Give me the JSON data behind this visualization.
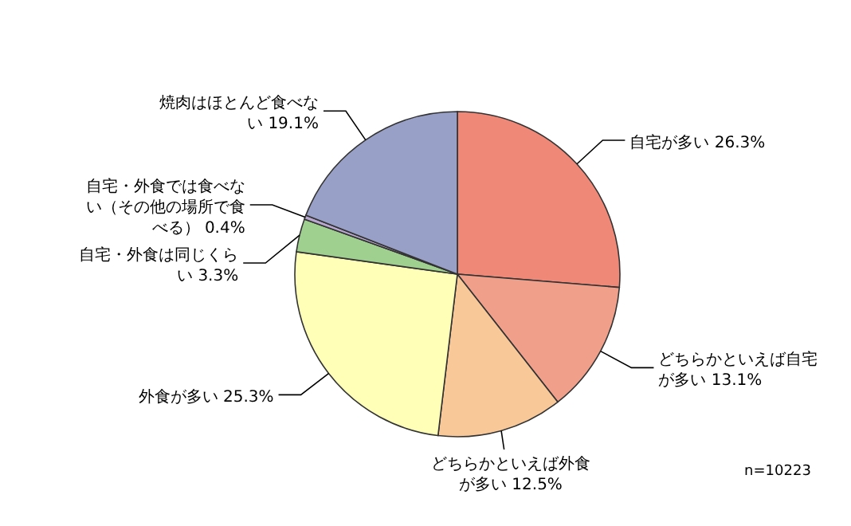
{
  "chart_data": {
    "type": "pie",
    "categories": [
      "自宅が多い",
      "どちらかといえば自宅が多い",
      "どちらかといえば外食が多い",
      "外食が多い",
      "自宅・外食は同じくらい",
      "自宅・外食では食べない（その他の場所で食べる）",
      "焼肉はほとんど食べない"
    ],
    "values": [
      26.3,
      13.1,
      12.5,
      25.3,
      3.3,
      0.4,
      19.1
    ],
    "value_labels": [
      "26.3%",
      "13.1%",
      "12.5%",
      "25.3%",
      "3.3%",
      "0.4%",
      "19.1%"
    ],
    "colors": [
      "#f08878",
      "#f0a08a",
      "#f8c898",
      "#ffffb8",
      "#a0d090",
      "#b8a8d0",
      "#98a0c8"
    ],
    "annotations": [
      "n=10223"
    ]
  }
}
